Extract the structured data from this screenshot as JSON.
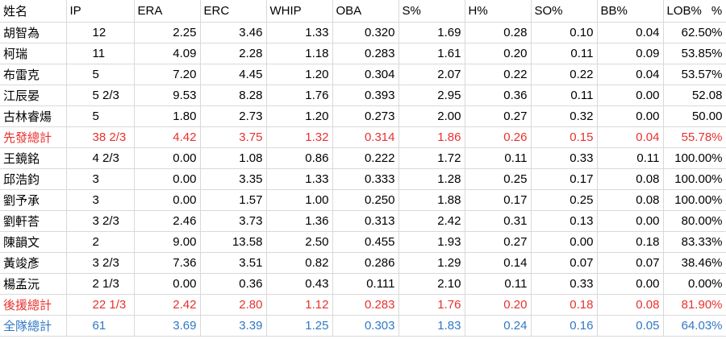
{
  "headers": [
    "姓名",
    "IP",
    "ERA",
    "ERC",
    "WHIP",
    "OBA",
    "S%",
    "H%",
    "SO%",
    "BB%",
    "LOB%"
  ],
  "header_extra": "%",
  "colors": {
    "starter_total": "#e8312e",
    "relief_total": "#e8312e",
    "team_total": "#2f78c4"
  },
  "rows": [
    {
      "type": "normal",
      "cells": [
        "胡智為",
        "12",
        "2.25",
        "3.46",
        "1.33",
        "0.320",
        "1.69",
        "0.28",
        "0.10",
        "0.04",
        "62.50%"
      ]
    },
    {
      "type": "normal",
      "cells": [
        "柯瑞",
        "11",
        "4.09",
        "2.28",
        "1.18",
        "0.283",
        "1.61",
        "0.20",
        "0.11",
        "0.09",
        "53.85%"
      ]
    },
    {
      "type": "normal",
      "cells": [
        "布雷克",
        "5",
        "7.20",
        "4.45",
        "1.20",
        "0.304",
        "2.07",
        "0.22",
        "0.22",
        "0.04",
        "53.57%"
      ]
    },
    {
      "type": "normal",
      "cells": [
        "江辰晏",
        "5 2/3",
        "9.53",
        "8.28",
        "1.76",
        "0.393",
        "2.95",
        "0.36",
        "0.11",
        "0.00",
        "52.08"
      ]
    },
    {
      "type": "normal",
      "cells": [
        "古林睿煬",
        "5",
        "1.80",
        "2.73",
        "1.20",
        "0.273",
        "2.00",
        "0.27",
        "0.32",
        "0.00",
        "50.00"
      ]
    },
    {
      "type": "red",
      "cells": [
        "先發總計",
        "38 2/3",
        "4.42",
        "3.75",
        "1.32",
        "0.314",
        "1.86",
        "0.26",
        "0.15",
        "0.04",
        "55.78%"
      ]
    },
    {
      "type": "normal",
      "cells": [
        "王鏡銘",
        "4 2/3",
        "0.00",
        "1.08",
        "0.86",
        "0.222",
        "1.72",
        "0.11",
        "0.33",
        "0.11",
        "100.00%"
      ]
    },
    {
      "type": "normal",
      "cells": [
        "邱浩鈞",
        "3",
        "0.00",
        "3.35",
        "1.33",
        "0.333",
        "1.28",
        "0.25",
        "0.17",
        "0.08",
        "100.00%"
      ]
    },
    {
      "type": "normal",
      "cells": [
        "劉予承",
        "3",
        "0.00",
        "1.57",
        "1.00",
        "0.250",
        "1.88",
        "0.17",
        "0.25",
        "0.08",
        "100.00%"
      ]
    },
    {
      "type": "normal",
      "cells": [
        "劉軒荅",
        "3 2/3",
        "2.46",
        "3.73",
        "1.36",
        "0.313",
        "2.42",
        "0.31",
        "0.13",
        "0.00",
        "80.00%"
      ]
    },
    {
      "type": "normal",
      "cells": [
        "陳韻文",
        "2",
        "9.00",
        "13.58",
        "2.50",
        "0.455",
        "1.93",
        "0.27",
        "0.00",
        "0.18",
        "83.33%"
      ]
    },
    {
      "type": "normal",
      "cells": [
        "黃竣彥",
        "3 2/3",
        "7.36",
        "3.51",
        "0.82",
        "0.286",
        "1.29",
        "0.14",
        "0.07",
        "0.07",
        "38.46%"
      ]
    },
    {
      "type": "normal",
      "cells": [
        "楊孟沅",
        "2 1/3",
        "0.00",
        "0.36",
        "0.43",
        "0.111",
        "2.10",
        "0.11",
        "0.33",
        "0.00",
        "0.00%"
      ]
    },
    {
      "type": "red",
      "cells": [
        "後援總計",
        "22 1/3",
        "2.42",
        "2.80",
        "1.12",
        "0.283",
        "1.76",
        "0.20",
        "0.18",
        "0.08",
        "81.90%"
      ]
    },
    {
      "type": "blue",
      "cells": [
        "全隊總計",
        "61",
        "3.69",
        "3.39",
        "1.25",
        "0.303",
        "1.83",
        "0.24",
        "0.16",
        "0.05",
        "64.03%"
      ]
    }
  ]
}
